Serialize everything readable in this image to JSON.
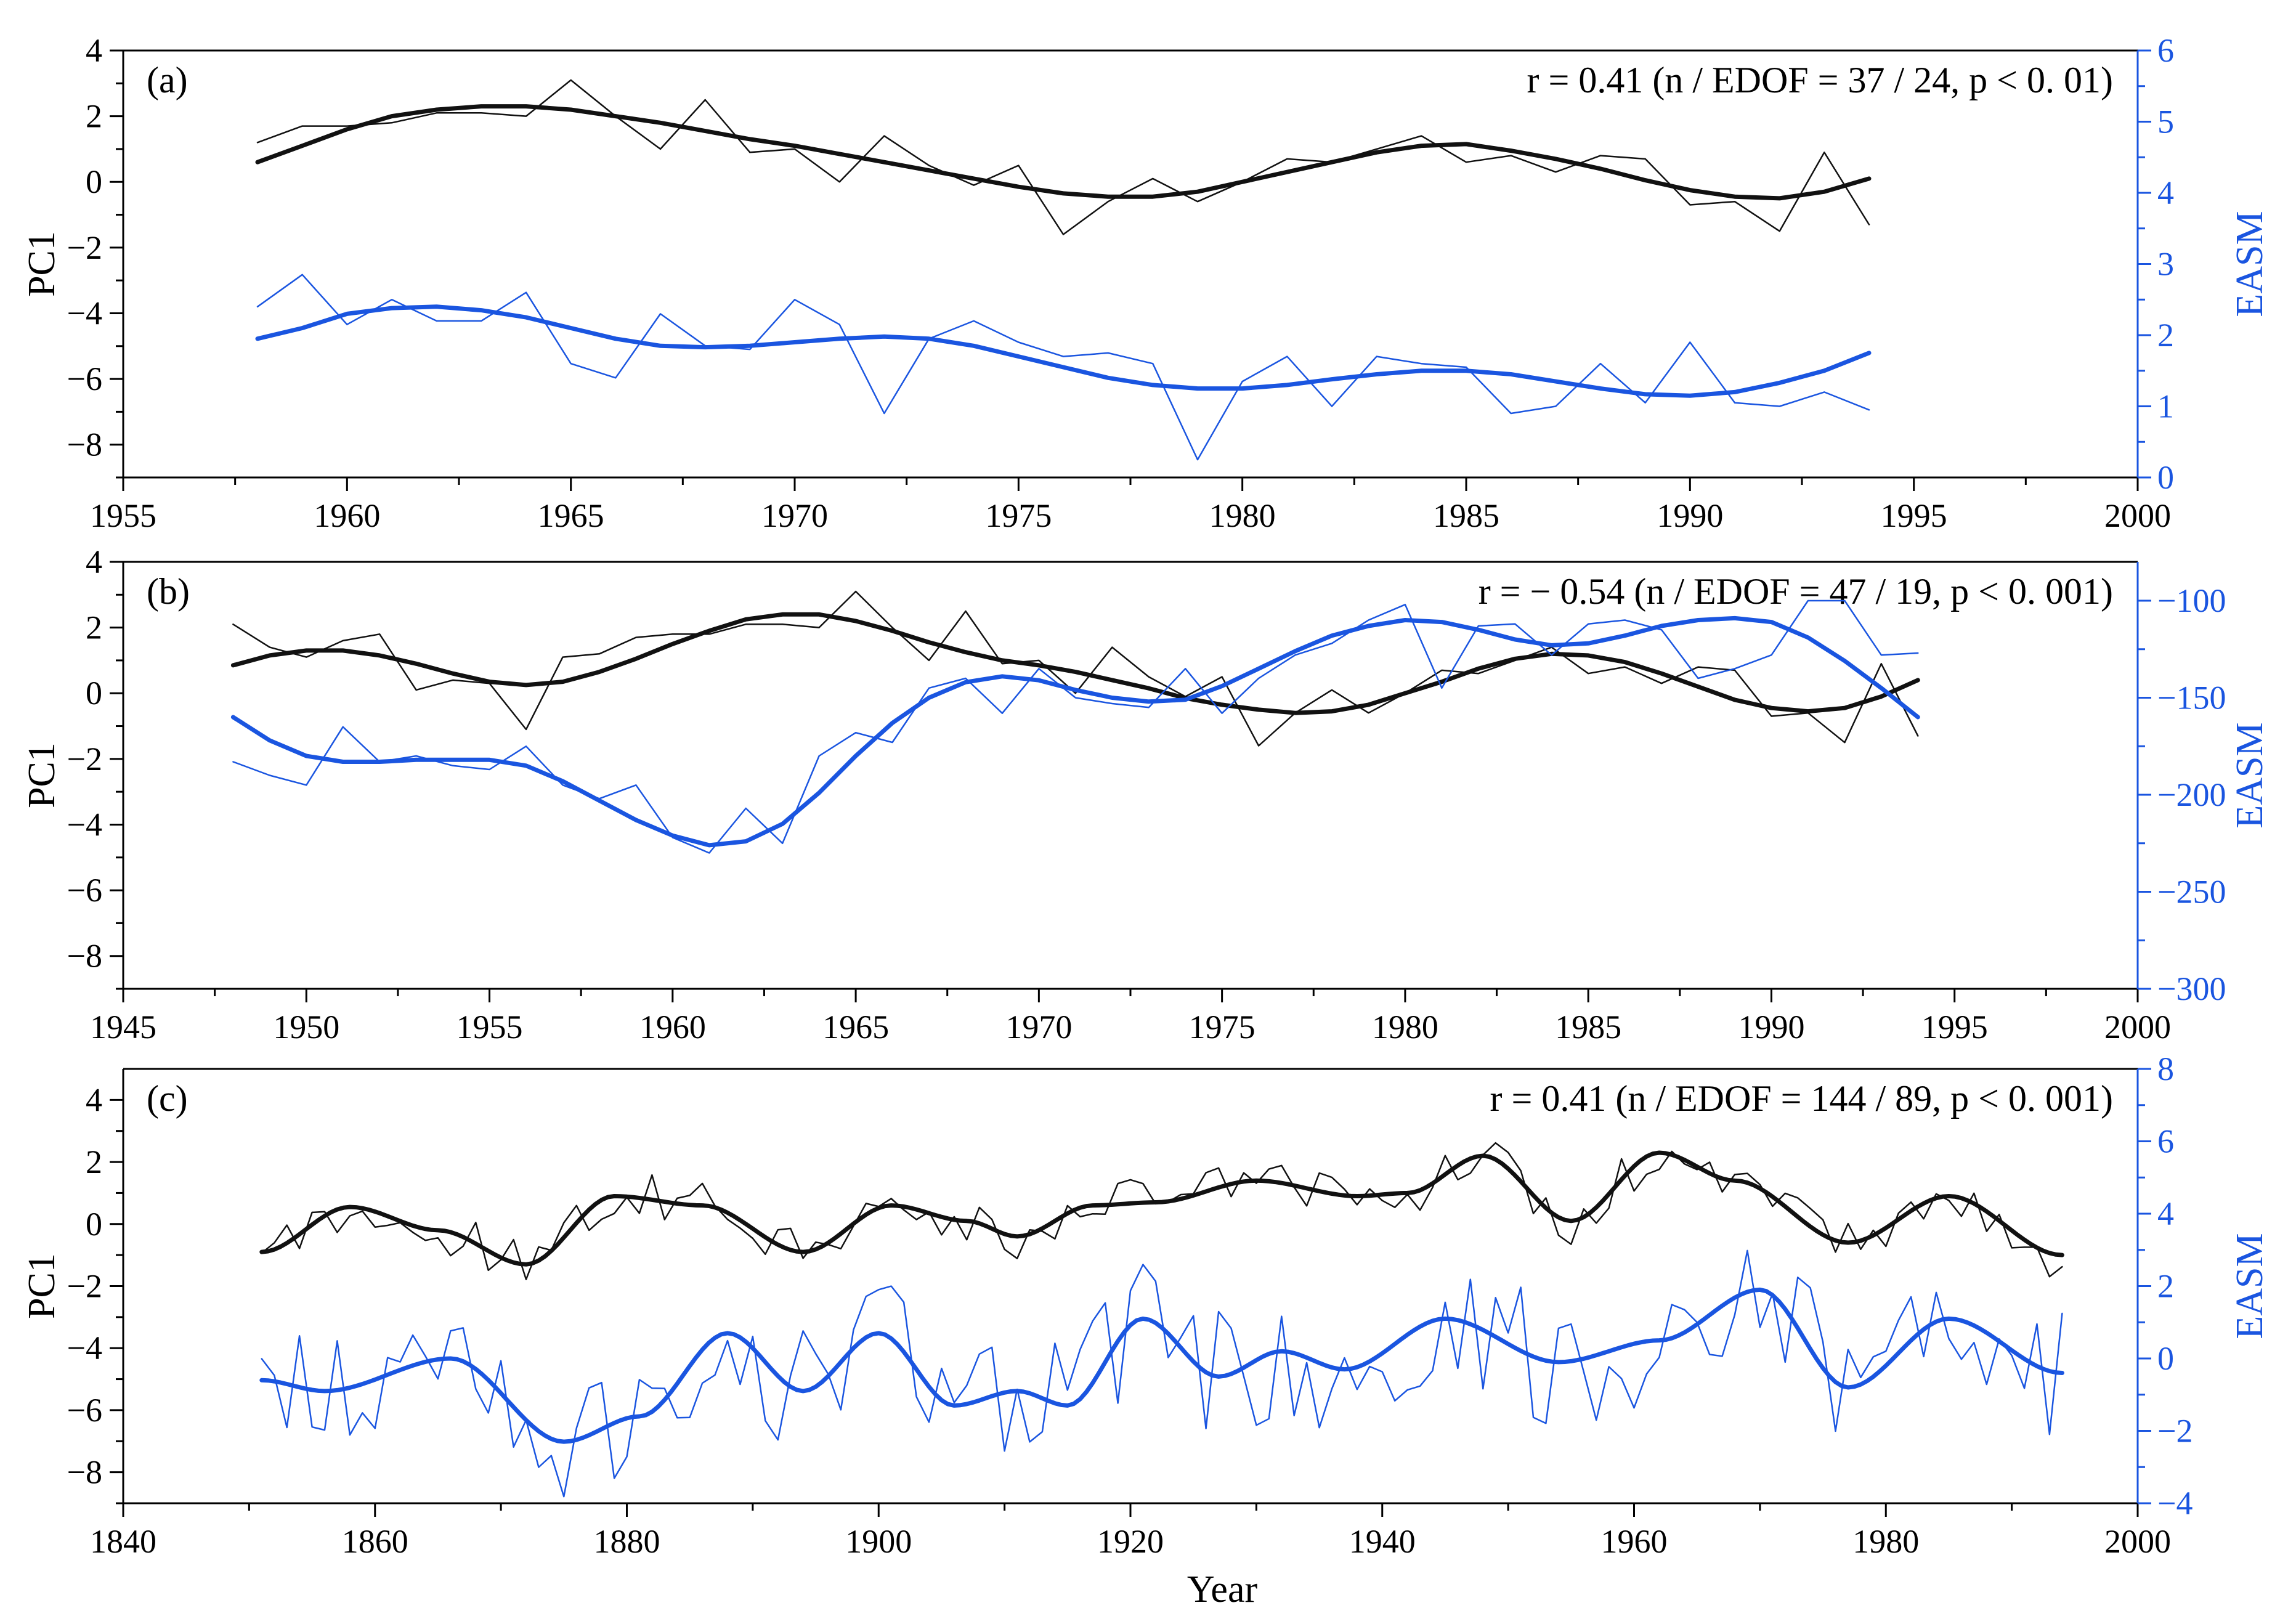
{
  "figure": {
    "xlabel": "Year",
    "colors": {
      "pc1": "#111111",
      "easm": "#1a55e0",
      "axis_right": "#1a55e0"
    }
  },
  "chart_data": [
    {
      "type": "line",
      "panel_label": "(a)",
      "annotation": "r = 0.41 (n / EDOF = 37 / 24, p < 0. 01)",
      "xlabel": "",
      "ylabel_left": "PC1",
      "ylabel_right": "EASM",
      "xlim": [
        1955,
        2000
      ],
      "xticks": [
        1955,
        1960,
        1965,
        1970,
        1975,
        1980,
        1985,
        1990,
        1995,
        2000
      ],
      "ylim_left": [
        -9,
        4
      ],
      "yticks_left": [
        4,
        2,
        0,
        -2,
        -4,
        -6,
        -8
      ],
      "ylim_right": [
        0,
        6
      ],
      "yticks_right": [
        6,
        5,
        4,
        3,
        2,
        1,
        0
      ],
      "series": [
        {
          "name": "PC1",
          "axis": "left",
          "style": "thin",
          "x_start": 1958,
          "x_step": 1,
          "values": [
            1.2,
            1.7,
            1.7,
            1.8,
            2.1,
            2.1,
            2.0,
            3.1,
            2.0,
            1.0,
            2.5,
            0.9,
            1.0,
            0.0,
            1.4,
            0.5,
            -0.1,
            0.5,
            -1.6,
            -0.6,
            0.1,
            -0.6,
            0.0,
            0.7,
            0.6,
            1.0,
            1.4,
            0.6,
            0.8,
            0.3,
            0.8,
            0.7,
            -0.7,
            -0.6,
            -1.5,
            0.9,
            -1.3
          ]
        },
        {
          "name": "PC1 smoothed",
          "axis": "left",
          "style": "thick",
          "x_start": 1958,
          "x_step": 1,
          "values": [
            0.6,
            1.1,
            1.6,
            2.0,
            2.2,
            2.3,
            2.3,
            2.2,
            2.0,
            1.8,
            1.55,
            1.3,
            1.1,
            0.85,
            0.6,
            0.35,
            0.1,
            -0.15,
            -0.35,
            -0.45,
            -0.45,
            -0.3,
            0.0,
            0.3,
            0.6,
            0.9,
            1.1,
            1.15,
            0.95,
            0.7,
            0.4,
            0.05,
            -0.25,
            -0.45,
            -0.5,
            -0.3,
            0.1
          ]
        },
        {
          "name": "EASM",
          "axis": "right",
          "style": "thin",
          "x_start": 1958,
          "x_step": 1,
          "values": [
            2.4,
            2.85,
            2.15,
            2.5,
            2.2,
            2.2,
            2.6,
            1.6,
            1.4,
            2.3,
            1.85,
            1.8,
            2.5,
            2.15,
            0.9,
            1.95,
            2.2,
            1.9,
            1.7,
            1.75,
            1.6,
            0.25,
            1.35,
            1.7,
            1.0,
            1.7,
            1.6,
            1.55,
            0.9,
            1.0,
            1.6,
            1.05,
            1.9,
            1.05,
            1.0,
            1.2,
            0.95
          ]
        },
        {
          "name": "EASM smoothed",
          "axis": "right",
          "style": "thick",
          "x_start": 1958,
          "x_step": 1,
          "values": [
            1.95,
            2.1,
            2.3,
            2.38,
            2.4,
            2.35,
            2.25,
            2.1,
            1.95,
            1.85,
            1.83,
            1.85,
            1.9,
            1.95,
            1.98,
            1.95,
            1.85,
            1.7,
            1.55,
            1.4,
            1.3,
            1.25,
            1.25,
            1.3,
            1.38,
            1.45,
            1.5,
            1.5,
            1.45,
            1.35,
            1.25,
            1.17,
            1.15,
            1.2,
            1.33,
            1.5,
            1.75
          ]
        }
      ]
    },
    {
      "type": "line",
      "panel_label": "(b)",
      "annotation": "r = − 0.54 (n / EDOF = 47 / 19, p < 0. 001)",
      "xlabel": "",
      "ylabel_left": "PC1",
      "ylabel_right": "EASM",
      "xlim": [
        1945,
        2000
      ],
      "xticks": [
        1945,
        1950,
        1955,
        1960,
        1965,
        1970,
        1975,
        1980,
        1985,
        1990,
        1995,
        2000
      ],
      "ylim_left": [
        -9,
        4
      ],
      "yticks_left": [
        4,
        2,
        0,
        -2,
        -4,
        -6,
        -8
      ],
      "ylim_right": [
        -300,
        -80
      ],
      "yticks_right": [
        -300,
        -250,
        -200,
        -150,
        -100
      ],
      "series": [
        {
          "name": "PC1",
          "axis": "left",
          "style": "thin",
          "x_start": 1948,
          "x_step": 1,
          "values": [
            2.1,
            1.4,
            1.1,
            1.6,
            1.8,
            0.1,
            0.4,
            0.3,
            -1.1,
            1.1,
            1.2,
            1.7,
            1.8,
            1.8,
            2.1,
            2.1,
            2.0,
            3.1,
            2.0,
            1.0,
            2.5,
            0.9,
            1.0,
            0.0,
            1.4,
            0.5,
            -0.1,
            0.5,
            -1.6,
            -0.6,
            0.1,
            -0.6,
            0.0,
            0.7,
            0.6,
            1.0,
            1.4,
            0.6,
            0.8,
            0.3,
            0.8,
            0.7,
            -0.7,
            -0.6,
            -1.5,
            0.9,
            -1.3
          ]
        },
        {
          "name": "PC1 smoothed",
          "axis": "left",
          "style": "thick",
          "x_start": 1948,
          "x_step": 1,
          "values": [
            0.85,
            1.15,
            1.3,
            1.3,
            1.15,
            0.9,
            0.6,
            0.35,
            0.25,
            0.35,
            0.65,
            1.05,
            1.5,
            1.9,
            2.25,
            2.4,
            2.4,
            2.2,
            1.9,
            1.55,
            1.25,
            1.0,
            0.85,
            0.65,
            0.4,
            0.15,
            -0.15,
            -0.35,
            -0.5,
            -0.6,
            -0.55,
            -0.35,
            0.0,
            0.35,
            0.75,
            1.05,
            1.2,
            1.15,
            0.95,
            0.6,
            0.2,
            -0.2,
            -0.45,
            -0.55,
            -0.45,
            -0.1,
            0.4
          ]
        },
        {
          "name": "EASM",
          "axis": "right",
          "style": "thin",
          "x_start": 1948,
          "x_step": 1,
          "values": [
            -183,
            -190,
            -195,
            -165,
            -183,
            -180,
            -185,
            -187,
            -175,
            -195,
            -202,
            -195,
            -222,
            -230,
            -207,
            -225,
            -180,
            -168,
            -173,
            -145,
            -140,
            -158,
            -135,
            -150,
            -153,
            -155,
            -135,
            -158,
            -140,
            -128,
            -122,
            -110,
            -102,
            -145,
            -113,
            -112,
            -128,
            -112,
            -110,
            -115,
            -140,
            -135,
            -128,
            -100,
            -100,
            -128,
            -127
          ]
        },
        {
          "name": "EASM smoothed",
          "axis": "right",
          "style": "thick",
          "x_start": 1948,
          "x_step": 1,
          "values": [
            -160,
            -172,
            -180,
            -183,
            -183,
            -182,
            -182,
            -182,
            -185,
            -193,
            -203,
            -213,
            -221,
            -226,
            -224,
            -215,
            -199,
            -180,
            -163,
            -150,
            -142,
            -139,
            -141,
            -146,
            -150,
            -152,
            -151,
            -144,
            -135,
            -126,
            -118,
            -113,
            -110,
            -111,
            -115,
            -120,
            -123,
            -122,
            -118,
            -113,
            -110,
            -109,
            -111,
            -119,
            -131,
            -145,
            -160
          ]
        }
      ]
    },
    {
      "type": "line",
      "panel_label": "(c)",
      "annotation": "r = 0.41 (n / EDOF = 144 / 89, p < 0. 001)",
      "xlabel": "Year",
      "ylabel_left": "PC1",
      "ylabel_right": "EASM",
      "xlim": [
        1840,
        2000
      ],
      "xticks": [
        1840,
        1860,
        1880,
        1900,
        1920,
        1940,
        1960,
        1980,
        2000
      ],
      "ylim_left": [
        -9,
        5
      ],
      "yticks_left": [
        4,
        2,
        0,
        -2,
        -4,
        -6,
        -8
      ],
      "ylim_right": [
        -4,
        8
      ],
      "yticks_right": [
        8,
        6,
        4,
        2,
        0,
        -2,
        -4
      ],
      "smoothed_pc1": {
        "x": [
          1851,
          1858,
          1865,
          1872,
          1879,
          1886,
          1894,
          1901,
          1907,
          1911,
          1917,
          1922,
          1930,
          1938,
          1942,
          1948,
          1955,
          1962,
          1968,
          1977,
          1985,
          1994
        ],
        "values": [
          -0.9,
          0.55,
          -0.2,
          -1.3,
          0.9,
          0.6,
          -0.9,
          0.6,
          0.1,
          -0.4,
          0.6,
          0.7,
          1.4,
          0.9,
          1.0,
          2.2,
          0.1,
          2.3,
          1.4,
          -0.6,
          0.9,
          -1.0
        ]
      },
      "smoothed_easm": {
        "x": [
          1851,
          1856,
          1866,
          1875,
          1881,
          1888,
          1894,
          1900,
          1906,
          1911,
          1915,
          1921,
          1927,
          1932,
          1937,
          1945,
          1954,
          1962,
          1970,
          1977,
          1985,
          1994
        ],
        "values": [
          -0.6,
          -0.9,
          0.0,
          -2.3,
          -1.6,
          0.7,
          -0.9,
          0.7,
          -1.3,
          -0.9,
          -1.3,
          1.1,
          -0.5,
          0.2,
          -0.3,
          1.1,
          -0.1,
          0.5,
          1.9,
          -0.8,
          1.1,
          -0.4
        ]
      }
    }
  ]
}
